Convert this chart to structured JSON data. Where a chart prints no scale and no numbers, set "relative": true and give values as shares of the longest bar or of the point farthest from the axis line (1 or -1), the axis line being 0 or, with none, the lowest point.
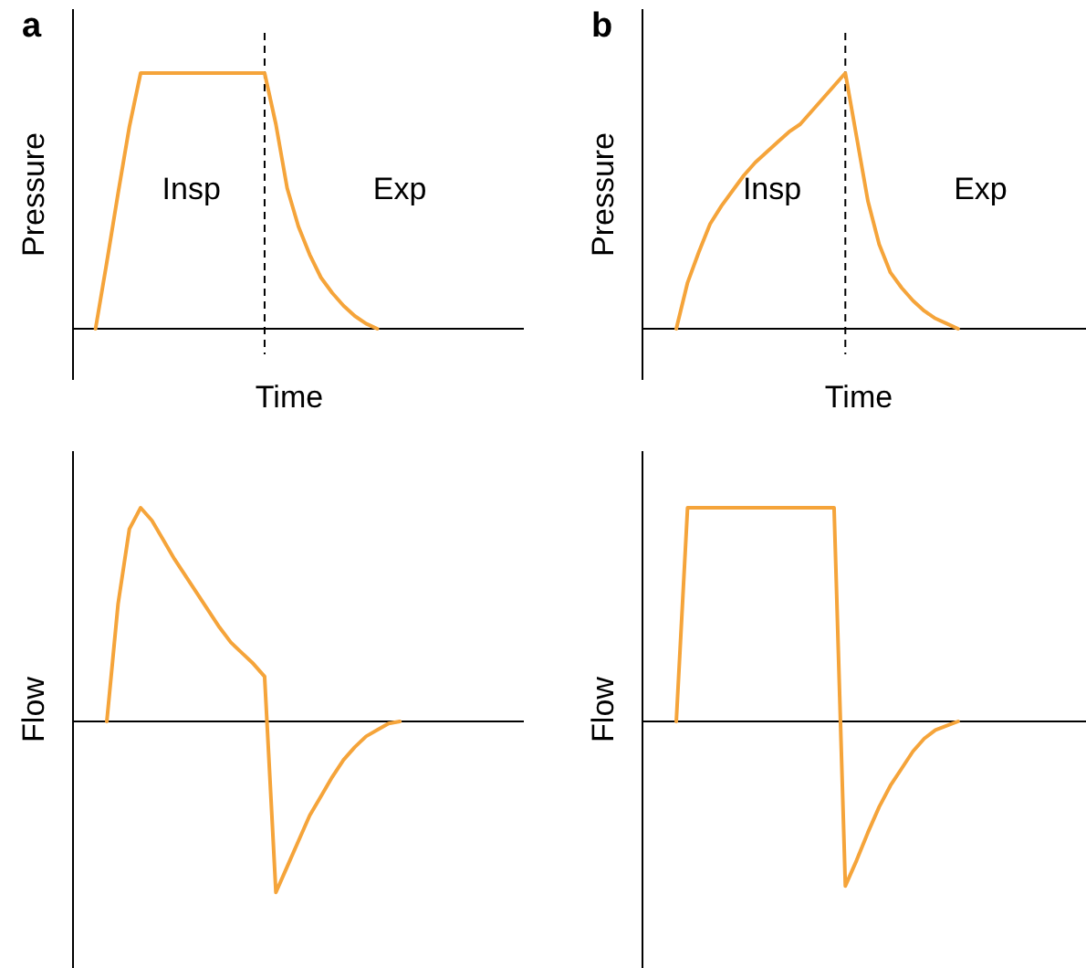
{
  "chart_data": [
    {
      "type": "line",
      "title": "a",
      "xlabel": "Time",
      "ylabel": "Pressure",
      "relative": true,
      "categories": [
        null,
        null,
        null,
        null,
        null,
        null,
        null,
        null,
        null,
        null,
        null,
        null,
        null,
        null,
        null,
        null,
        null,
        null,
        null,
        null,
        null,
        null,
        null,
        null,
        null,
        null,
        null,
        null,
        null,
        null,
        null,
        null,
        null,
        null,
        null,
        null,
        null,
        null,
        null,
        null,
        null
      ],
      "series": [
        {
          "color": "#f5a43a",
          "values": [
            null,
            null,
            0,
            0.26,
            0.53,
            0.79,
            1,
            1,
            1,
            1,
            1,
            1,
            1,
            1,
            1,
            1,
            1,
            1,
            0.8,
            0.55,
            0.4,
            0.29,
            0.2,
            0.14,
            0.09,
            0.05,
            0.02,
            0,
            null,
            null,
            null,
            null,
            null,
            null,
            null,
            null,
            null,
            null,
            null,
            null,
            null
          ]
        }
      ],
      "annotations": [
        "Insp",
        "Exp"
      ]
    },
    {
      "type": "line",
      "title": "b",
      "xlabel": "Time",
      "ylabel": "Pressure",
      "relative": true,
      "categories": [
        null,
        null,
        null,
        null,
        null,
        null,
        null,
        null,
        null,
        null,
        null,
        null,
        null,
        null,
        null,
        null,
        null,
        null,
        null,
        null,
        null,
        null,
        null,
        null,
        null,
        null,
        null,
        null,
        null,
        null,
        null,
        null,
        null,
        null,
        null,
        null,
        null,
        null,
        null,
        null,
        null
      ],
      "series": [
        {
          "color": "#f5a43a",
          "values": [
            null,
            null,
            null,
            0,
            0.18,
            0.3,
            0.41,
            0.48,
            0.54,
            0.6,
            0.65,
            0.69,
            0.73,
            0.77,
            0.8,
            0.85,
            0.9,
            0.95,
            1,
            0.75,
            0.5,
            0.33,
            0.22,
            0.16,
            0.11,
            0.07,
            0.04,
            0.02,
            0,
            null,
            null,
            null,
            null,
            null,
            null,
            null,
            null,
            null,
            null,
            null,
            null
          ]
        }
      ],
      "annotations": [
        "Insp",
        "Exp"
      ]
    },
    {
      "type": "line",
      "ylabel": "Flow",
      "relative": true,
      "categories": [
        null,
        null,
        null,
        null,
        null,
        null,
        null,
        null,
        null,
        null,
        null,
        null,
        null,
        null,
        null,
        null,
        null,
        null,
        null,
        null,
        null,
        null,
        null,
        null,
        null,
        null,
        null,
        null,
        null,
        null,
        null,
        null,
        null,
        null,
        null,
        null,
        null,
        null,
        null,
        null,
        null
      ],
      "series": [
        {
          "color": "#f5a43a",
          "values": [
            null,
            null,
            null,
            0,
            0.55,
            0.9,
            1,
            0.94,
            0.85,
            0.76,
            0.68,
            0.6,
            0.52,
            0.44,
            0.37,
            0.32,
            0.27,
            0.21,
            -0.8,
            -0.68,
            -0.56,
            -0.44,
            -0.35,
            -0.26,
            -0.18,
            -0.12,
            -0.07,
            -0.04,
            -0.01,
            0,
            null,
            null,
            null,
            null,
            null,
            null,
            null,
            null,
            null,
            null,
            null
          ]
        }
      ]
    },
    {
      "type": "line",
      "ylabel": "Flow",
      "relative": true,
      "categories": [
        null,
        null,
        null,
        null,
        null,
        null,
        null,
        null,
        null,
        null,
        null,
        null,
        null,
        null,
        null,
        null,
        null,
        null,
        null,
        null,
        null,
        null,
        null,
        null,
        null,
        null,
        null,
        null,
        null,
        null,
        null,
        null,
        null,
        null,
        null,
        null,
        null,
        null,
        null,
        null,
        null
      ],
      "series": [
        {
          "color": "#f5a43a",
          "values": [
            null,
            null,
            null,
            0,
            1,
            1,
            1,
            1,
            1,
            1,
            1,
            1,
            1,
            1,
            1,
            1,
            1,
            1,
            -0.77,
            -0.65,
            -0.52,
            -0.4,
            -0.3,
            -0.22,
            -0.14,
            -0.08,
            -0.04,
            -0.02,
            0,
            null,
            null,
            null,
            null,
            null,
            null,
            null,
            null,
            null,
            null,
            null,
            null
          ]
        }
      ]
    }
  ]
}
